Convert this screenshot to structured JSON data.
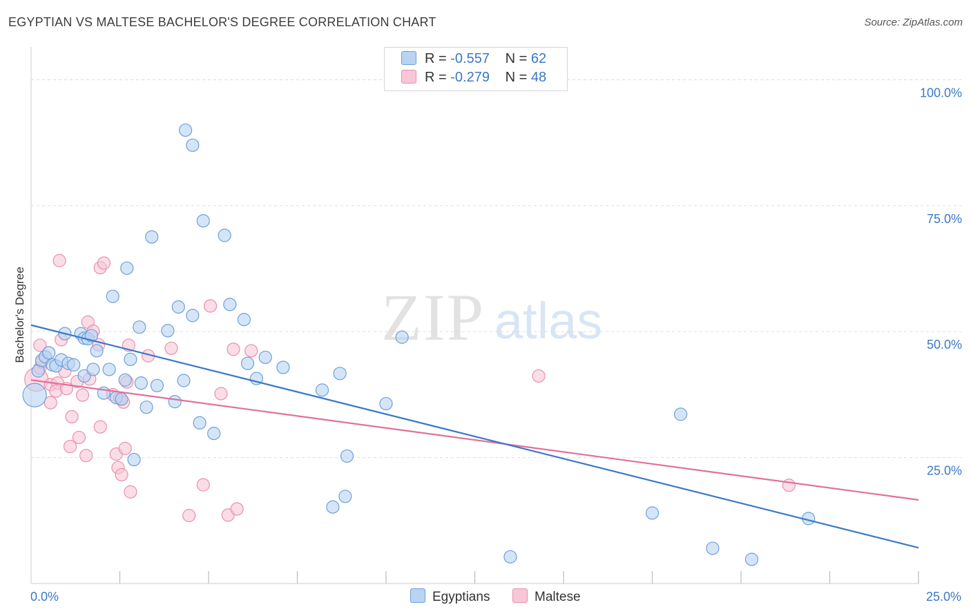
{
  "title": "EGYPTIAN VS MALTESE BACHELOR'S DEGREE CORRELATION CHART",
  "source": "Source: ZipAtlas.com",
  "watermark": {
    "zip": "ZIP",
    "atlas": "atlas"
  },
  "legend": {
    "rows": [
      {
        "r_label": "R = ",
        "r_value": "-0.557",
        "n_label": "N = ",
        "n_value": "62"
      },
      {
        "r_label": "R = ",
        "r_value": "-0.279",
        "n_label": "N = ",
        "n_value": "48"
      }
    ]
  },
  "bottom_legend": {
    "series1": "Egyptians",
    "series2": "Maltese"
  },
  "colors": {
    "blue_fill": "#b9d3f3",
    "blue_stroke": "#6d9fd8",
    "blue_line": "#3a78c8",
    "pink_fill": "#f8c6d6",
    "pink_stroke": "#e98fae",
    "pink_line": "#e0709a",
    "tick_label": "#3a78c8",
    "grid": "#dddddd",
    "axis": "#cccccc"
  },
  "chart_data": {
    "type": "scatter",
    "title": "EGYPTIAN VS MALTESE BACHELOR'S DEGREE CORRELATION CHART",
    "xlabel": "",
    "ylabel": "Bachelor's Degree",
    "xlim": [
      0,
      25
    ],
    "ylim": [
      0,
      105
    ],
    "x_tick_labels": [
      "0.0%",
      "25.0%"
    ],
    "y_ticks": [
      25,
      50,
      75,
      100
    ],
    "y_tick_labels": [
      "25.0%",
      "50.0%",
      "75.0%",
      "100.0%"
    ],
    "series": [
      {
        "name": "Egyptians",
        "r": -0.557,
        "n": 62,
        "trend": {
          "x": [
            0,
            25
          ],
          "y": [
            51.3,
            7.1
          ]
        },
        "points": [
          {
            "x": 0.1,
            "y": 37.4,
            "big": true
          },
          {
            "x": 0.2,
            "y": 42.2
          },
          {
            "x": 0.3,
            "y": 44.3
          },
          {
            "x": 0.4,
            "y": 45.0
          },
          {
            "x": 0.5,
            "y": 45.8
          },
          {
            "x": 0.6,
            "y": 43.4
          },
          {
            "x": 0.7,
            "y": 43.2
          },
          {
            "x": 0.85,
            "y": 44.4
          },
          {
            "x": 0.95,
            "y": 49.6
          },
          {
            "x": 1.05,
            "y": 43.7
          },
          {
            "x": 1.2,
            "y": 43.4
          },
          {
            "x": 1.4,
            "y": 49.6
          },
          {
            "x": 1.5,
            "y": 48.7
          },
          {
            "x": 1.6,
            "y": 48.6
          },
          {
            "x": 1.7,
            "y": 49.2
          },
          {
            "x": 1.5,
            "y": 41.2
          },
          {
            "x": 1.75,
            "y": 42.5
          },
          {
            "x": 1.85,
            "y": 46.2
          },
          {
            "x": 2.05,
            "y": 37.8
          },
          {
            "x": 2.2,
            "y": 42.5
          },
          {
            "x": 2.3,
            "y": 57.0
          },
          {
            "x": 2.4,
            "y": 36.9
          },
          {
            "x": 2.55,
            "y": 36.6
          },
          {
            "x": 2.65,
            "y": 40.4
          },
          {
            "x": 2.7,
            "y": 62.6
          },
          {
            "x": 2.8,
            "y": 44.5
          },
          {
            "x": 2.9,
            "y": 24.6
          },
          {
            "x": 3.05,
            "y": 50.9
          },
          {
            "x": 3.1,
            "y": 39.8
          },
          {
            "x": 3.25,
            "y": 35.0
          },
          {
            "x": 3.4,
            "y": 68.8
          },
          {
            "x": 3.55,
            "y": 39.3
          },
          {
            "x": 3.85,
            "y": 50.2
          },
          {
            "x": 4.05,
            "y": 36.1
          },
          {
            "x": 4.15,
            "y": 54.9
          },
          {
            "x": 4.3,
            "y": 40.3
          },
          {
            "x": 4.35,
            "y": 90.0
          },
          {
            "x": 4.55,
            "y": 53.2
          },
          {
            "x": 4.55,
            "y": 87.0
          },
          {
            "x": 4.75,
            "y": 31.9
          },
          {
            "x": 4.85,
            "y": 72.0
          },
          {
            "x": 5.15,
            "y": 29.8
          },
          {
            "x": 5.45,
            "y": 69.1
          },
          {
            "x": 5.6,
            "y": 55.4
          },
          {
            "x": 6.0,
            "y": 52.4
          },
          {
            "x": 6.1,
            "y": 43.7
          },
          {
            "x": 6.35,
            "y": 40.7
          },
          {
            "x": 6.6,
            "y": 44.9
          },
          {
            "x": 7.1,
            "y": 42.9
          },
          {
            "x": 8.2,
            "y": 38.4
          },
          {
            "x": 8.7,
            "y": 41.7
          },
          {
            "x": 8.5,
            "y": 15.2
          },
          {
            "x": 8.9,
            "y": 25.3
          },
          {
            "x": 8.85,
            "y": 17.3
          },
          {
            "x": 10.0,
            "y": 35.7
          },
          {
            "x": 10.45,
            "y": 48.9
          },
          {
            "x": 13.5,
            "y": 5.3
          },
          {
            "x": 17.5,
            "y": 14.0
          },
          {
            "x": 18.3,
            "y": 33.6
          },
          {
            "x": 19.2,
            "y": 7.0
          },
          {
            "x": 20.3,
            "y": 4.8
          },
          {
            "x": 21.9,
            "y": 12.9
          }
        ]
      },
      {
        "name": "Maltese",
        "r": -0.279,
        "n": 48,
        "trend": {
          "x": [
            0,
            25
          ],
          "y": [
            40.4,
            16.6
          ]
        },
        "points": [
          {
            "x": 0.15,
            "y": 40.5,
            "big": true
          },
          {
            "x": 0.25,
            "y": 42.8
          },
          {
            "x": 0.25,
            "y": 47.3
          },
          {
            "x": 0.4,
            "y": 45.0
          },
          {
            "x": 0.55,
            "y": 39.5
          },
          {
            "x": 0.55,
            "y": 35.9
          },
          {
            "x": 0.75,
            "y": 39.8
          },
          {
            "x": 0.7,
            "y": 38.2
          },
          {
            "x": 0.8,
            "y": 64.1
          },
          {
            "x": 0.85,
            "y": 48.4
          },
          {
            "x": 0.95,
            "y": 42.1
          },
          {
            "x": 1.0,
            "y": 38.7
          },
          {
            "x": 1.1,
            "y": 27.2
          },
          {
            "x": 1.15,
            "y": 33.1
          },
          {
            "x": 1.3,
            "y": 40.1
          },
          {
            "x": 1.35,
            "y": 29.0
          },
          {
            "x": 1.45,
            "y": 37.4
          },
          {
            "x": 1.55,
            "y": 25.4
          },
          {
            "x": 1.6,
            "y": 51.9
          },
          {
            "x": 1.65,
            "y": 40.6
          },
          {
            "x": 1.75,
            "y": 50.1
          },
          {
            "x": 1.9,
            "y": 47.4
          },
          {
            "x": 1.95,
            "y": 31.1
          },
          {
            "x": 1.95,
            "y": 62.7
          },
          {
            "x": 2.05,
            "y": 63.6
          },
          {
            "x": 2.3,
            "y": 37.5
          },
          {
            "x": 2.4,
            "y": 25.7
          },
          {
            "x": 2.45,
            "y": 23.0
          },
          {
            "x": 2.5,
            "y": 36.8
          },
          {
            "x": 2.55,
            "y": 21.6
          },
          {
            "x": 2.6,
            "y": 36.0
          },
          {
            "x": 2.65,
            "y": 26.8
          },
          {
            "x": 2.7,
            "y": 40.0
          },
          {
            "x": 2.75,
            "y": 47.3
          },
          {
            "x": 2.8,
            "y": 18.2
          },
          {
            "x": 3.3,
            "y": 45.2
          },
          {
            "x": 3.95,
            "y": 46.7
          },
          {
            "x": 4.45,
            "y": 13.5
          },
          {
            "x": 4.85,
            "y": 19.6
          },
          {
            "x": 5.05,
            "y": 55.1
          },
          {
            "x": 5.35,
            "y": 37.7
          },
          {
            "x": 5.55,
            "y": 13.6
          },
          {
            "x": 5.7,
            "y": 46.5
          },
          {
            "x": 5.8,
            "y": 14.8
          },
          {
            "x": 6.2,
            "y": 46.2
          },
          {
            "x": 14.3,
            "y": 41.2
          },
          {
            "x": 21.35,
            "y": 19.5
          },
          {
            "x": 0.3,
            "y": 44.0
          }
        ]
      }
    ]
  }
}
